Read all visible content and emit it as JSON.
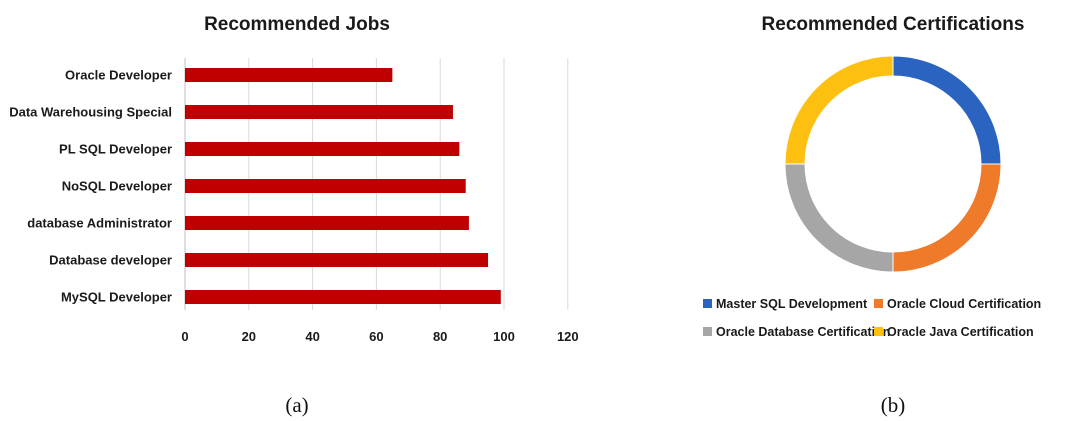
{
  "chart_data": [
    {
      "type": "bar",
      "orientation": "horizontal",
      "title": "Recommended Jobs",
      "categories": [
        "Oracle Developer",
        "Data Warehousing Special",
        "PL SQL Developer",
        "NoSQL Developer",
        "database Administrator",
        "Database developer",
        "MySQL Developer"
      ],
      "values": [
        65,
        84,
        86,
        88,
        89,
        95,
        99
      ],
      "xlim": [
        0,
        120
      ],
      "xticks": [
        "0",
        "20",
        "40",
        "60",
        "80",
        "100",
        "120"
      ],
      "grid": "vertical",
      "bar_color": "#c00000"
    },
    {
      "type": "pie",
      "style": "donut",
      "title": "Recommended Certifications",
      "labels": [
        "Master SQL Development",
        "Oracle Cloud Certification",
        "Oracle Database Certification",
        "Oracle Java Certification"
      ],
      "values": [
        25,
        25,
        25,
        25
      ],
      "colors": [
        "#2a63c0",
        "#ef7a2a",
        "#a6a6a6",
        "#fdc010"
      ],
      "legend": "bottom"
    }
  ],
  "captions": {
    "left": "(a)",
    "right": "(b)"
  }
}
